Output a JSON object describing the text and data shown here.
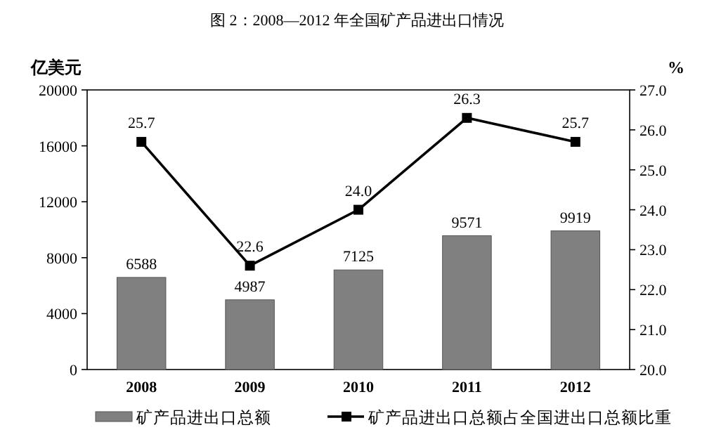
{
  "chart_data": {
    "type": "bar",
    "title": "图 2：2008—2012 年全国矿产品进出口情况",
    "ylabel": "亿美元",
    "y2label": "%",
    "categories": [
      "2008",
      "2009",
      "2010",
      "2011",
      "2012"
    ],
    "series": [
      {
        "name": "矿产品进出口总额",
        "color": "#808080",
        "values": [
          6588,
          4987,
          7125,
          9571,
          9919
        ],
        "value_labels": [
          "6588",
          "4987",
          "7125",
          "9571",
          "9919"
        ]
      },
      {
        "name": "矿产品进出口总额占全国进出口总额比重",
        "type": "line",
        "axis": "y2",
        "color": "#000000",
        "values": [
          25.7,
          22.6,
          24.0,
          26.3,
          25.7
        ],
        "value_labels": [
          "25.7",
          "22.6",
          "24.0",
          "26.3",
          "25.7"
        ]
      }
    ],
    "ylim": [
      0,
      20000
    ],
    "yticks": [
      0,
      4000,
      8000,
      12000,
      16000,
      20000
    ],
    "y2lim": [
      20,
      27
    ],
    "y2ticks": [
      {
        "value": 20,
        "label": "20.0"
      },
      {
        "value": 21,
        "label": "21.0"
      },
      {
        "value": 22,
        "label": "22.0"
      },
      {
        "value": 23,
        "label": "23.0"
      },
      {
        "value": 24,
        "label": "24.0"
      },
      {
        "value": 25,
        "label": "25.0"
      },
      {
        "value": 26,
        "label": "26.0"
      },
      {
        "value": 27,
        "label": "27.0"
      }
    ],
    "marker": "square",
    "line_style": "solid",
    "legend": "bottom"
  }
}
